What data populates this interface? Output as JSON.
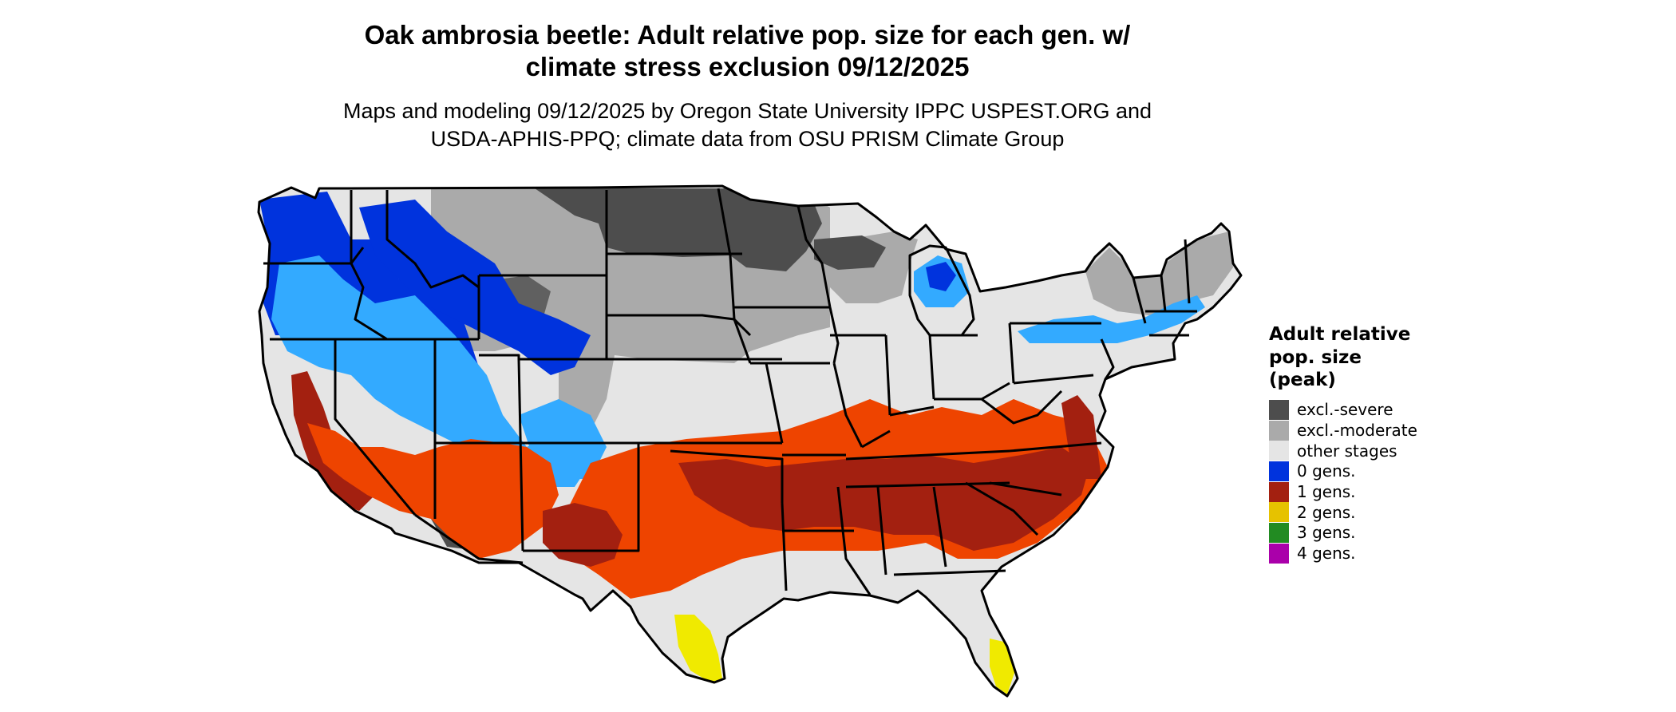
{
  "title": {
    "line1": "Oak ambrosia beetle: Adult relative pop. size for each gen. w/",
    "line2": "climate stress exclusion 09/12/2025"
  },
  "subtitle": {
    "line1": "Maps and modeling 09/12/2025 by Oregon State University IPPC USPEST.ORG and",
    "line2": "USDA-APHIS-PPQ; climate data from OSU PRISM Climate Group"
  },
  "legend": {
    "title_line1": "Adult relative",
    "title_line2": "pop. size",
    "title_line3": "(peak)",
    "items": [
      {
        "label": "excl.-severe",
        "color": "#4d4d4d"
      },
      {
        "label": "excl.-moderate",
        "color": "#aaaaaa"
      },
      {
        "label": "other stages",
        "color": "#e5e5e5"
      },
      {
        "label": "0 gens.",
        "color": "#0033dd"
      },
      {
        "label": "1 gens.",
        "color": "#a32010"
      },
      {
        "label": "2 gens.",
        "color": "#e6c200"
      },
      {
        "label": "3 gens.",
        "color": "#228b22"
      },
      {
        "label": "4 gens.",
        "color": "#aa00aa"
      }
    ]
  },
  "map_colors": {
    "other_stages": "#e5e5e5",
    "excl_severe": "#4d4d4d",
    "excl_moderate": "#aaaaaa",
    "zero_gens_dark": "#0033dd",
    "zero_gens_light": "#33aaff",
    "one_gens_dark": "#a32010",
    "one_gens_orange": "#ee4400",
    "two_gens_yellow": "#f0ea00",
    "boundary": "#000000"
  }
}
